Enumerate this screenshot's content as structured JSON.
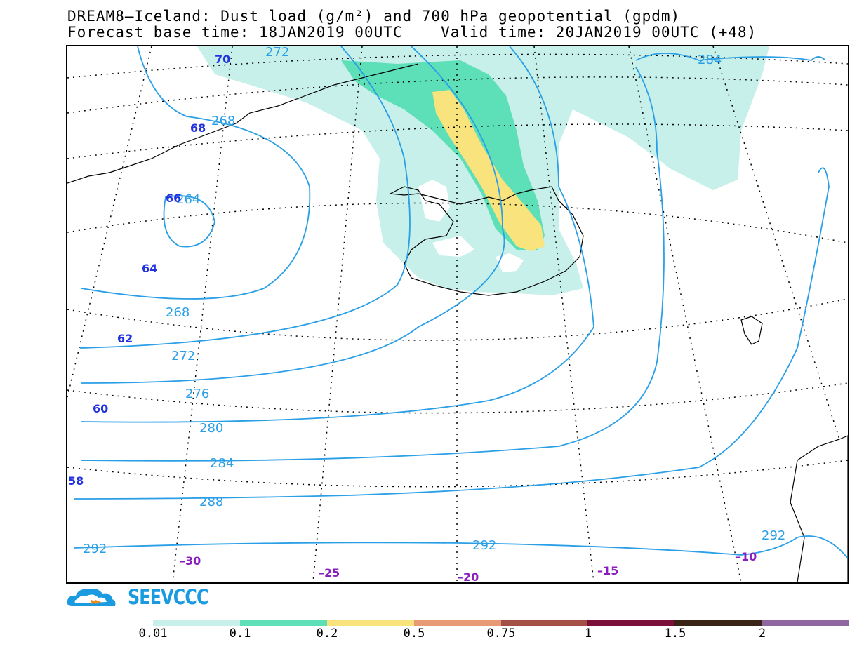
{
  "title": {
    "line1": "DREAM8–Iceland: Dust load (g/m²) and 700 hPa geopotential (gpdm)",
    "line2": "Forecast base time: 18JAN2019 00UTC    Valid time: 20JAN2019 00UTC (+48)"
  },
  "contours": {
    "labels": [
      "272",
      "284",
      "268",
      "264",
      "268",
      "272",
      "276",
      "280",
      "284",
      "288",
      "292",
      "292",
      "292"
    ],
    "color": "#2a9fe6"
  },
  "graticule": {
    "lat_labels": [
      "70",
      "68",
      "66",
      "64",
      "62",
      "60",
      "58"
    ],
    "lon_labels": [
      "–30",
      "–25",
      "–20",
      "–15",
      "–10"
    ],
    "lat_color": "#2233dd",
    "lon_color": "#8a1fbf"
  },
  "dust_levels_colors": [
    "#c6f0e9",
    "#5ddfb8",
    "#f8e37c",
    "#e89a77",
    "#a55047",
    "#7b0f3a",
    "#3a2418",
    "#8f67a0"
  ],
  "legend": {
    "ticks": [
      "0.01",
      "0.1",
      "0.2",
      "0.5",
      "0.75",
      "1",
      "1.5",
      "2"
    ]
  },
  "logo": {
    "text": "SEEVCCC",
    "icon": "cloud-logo-icon"
  }
}
